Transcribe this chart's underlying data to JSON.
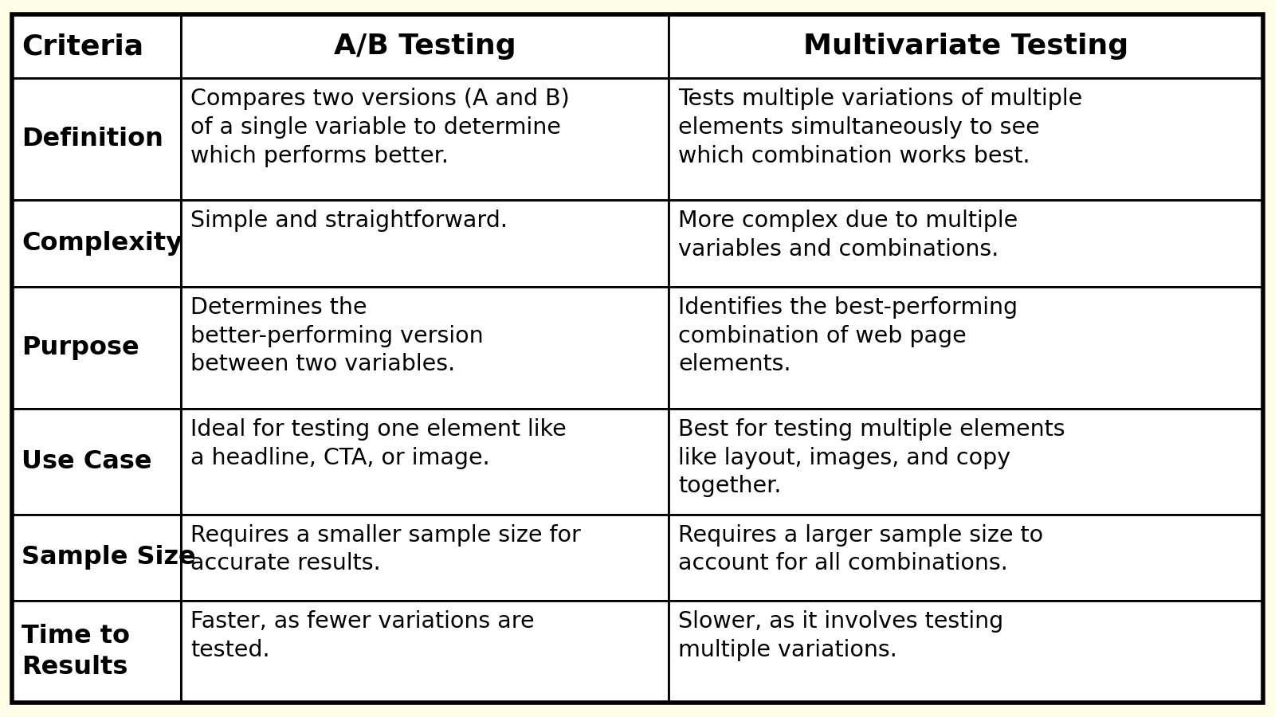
{
  "background_color": "#fdfde8",
  "border_color": "#000000",
  "cell_bg": "#ffffff",
  "text_color": "#000000",
  "col1_label": "Criteria",
  "col2_label": "A/B Testing",
  "col3_label": "Multivariate Testing",
  "rows": [
    {
      "criteria": "Definition",
      "ab": "Compares two versions (A and B)\nof a single variable to determine\nwhich performs better.",
      "mv": "Tests multiple variations of multiple\nelements simultaneously to see\nwhich combination works best."
    },
    {
      "criteria": "Complexity",
      "ab": "Simple and straightforward.",
      "mv": "More complex due to multiple\nvariables and combinations."
    },
    {
      "criteria": "Purpose",
      "ab": "Determines the\nbetter-performing version\nbetween two variables.",
      "mv": "Identifies the best-performing\ncombination of web page\nelements."
    },
    {
      "criteria": "Use Case",
      "ab": "Ideal for testing one element like\na headline, CTA, or image.",
      "mv": "Best for testing multiple elements\nlike layout, images, and copy\ntogether."
    },
    {
      "criteria": "Sample Size",
      "ab": "Requires a smaller sample size for\naccurate results.",
      "mv": "Requires a larger sample size to\naccount for all combinations."
    },
    {
      "criteria": "Time to\nResults",
      "ab": "Faster, as fewer variations are\ntested.",
      "mv": "Slower, as it involves testing\nmultiple variations."
    }
  ],
  "figsize": [
    16.0,
    9.0
  ],
  "dpi": 100
}
